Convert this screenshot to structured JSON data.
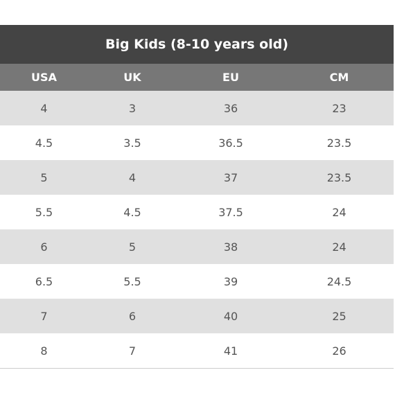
{
  "table": {
    "title": "Big Kids (8-10 years old)",
    "columns": [
      "USA",
      "UK",
      "EU",
      "CM"
    ],
    "rows": [
      [
        "4",
        "3",
        "36",
        "23"
      ],
      [
        "4.5",
        "3.5",
        "36.5",
        "23.5"
      ],
      [
        "5",
        "4",
        "37",
        "23.5"
      ],
      [
        "5.5",
        "4.5",
        "37.5",
        "24"
      ],
      [
        "6",
        "5",
        "38",
        "24"
      ],
      [
        "6.5",
        "5.5",
        "39",
        "24.5"
      ],
      [
        "7",
        "6",
        "40",
        "25"
      ],
      [
        "8",
        "7",
        "41",
        "26"
      ]
    ]
  }
}
